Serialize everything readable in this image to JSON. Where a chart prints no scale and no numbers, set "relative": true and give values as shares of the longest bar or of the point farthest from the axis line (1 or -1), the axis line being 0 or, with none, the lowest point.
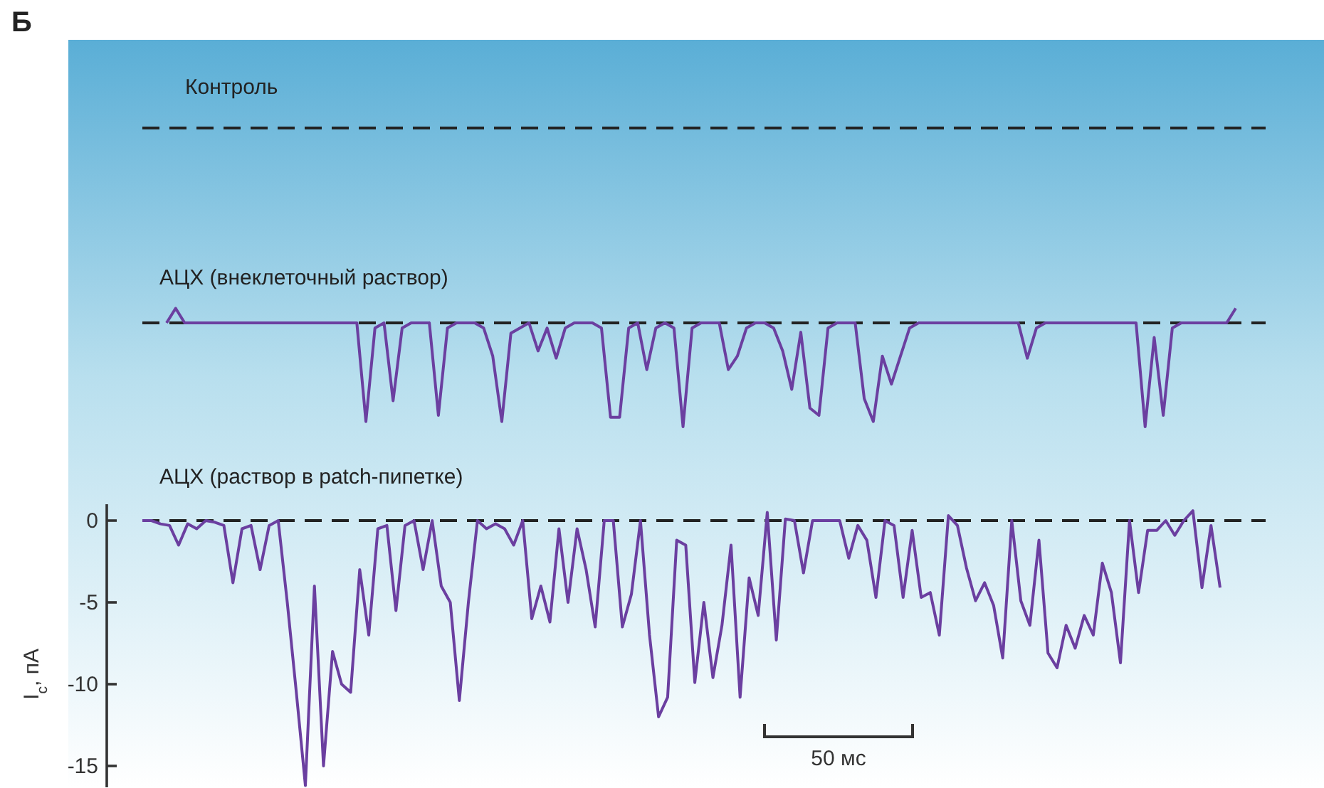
{
  "chart_data": [
    {
      "type": "other",
      "title": "Контроль",
      "annotations": [
        "Б"
      ]
    },
    {
      "type": "line",
      "title": "АЦХ (внеклеточный раствор)",
      "relative": true,
      "tick_labels": false,
      "ref_lines": [
        {
          "axis": "y",
          "value": 0,
          "line_style": "dashed",
          "color": "#222222"
        }
      ],
      "categories": [
        null,
        null,
        null,
        null,
        null,
        null,
        null,
        null,
        null,
        null,
        null,
        null,
        null,
        null,
        null,
        null,
        null,
        null,
        null,
        null,
        null,
        null,
        null,
        null,
        null,
        null,
        null,
        null,
        null,
        null,
        null,
        null,
        null,
        null,
        null,
        null,
        null,
        null,
        null,
        null,
        null,
        null,
        null,
        null,
        null,
        null,
        null,
        null,
        null,
        null,
        null,
        null,
        null,
        null,
        null,
        null,
        null,
        null,
        null,
        null,
        null,
        null,
        null,
        null,
        null,
        null,
        null,
        null,
        null,
        null,
        null,
        null,
        null,
        null,
        null,
        null,
        null,
        null,
        null,
        null,
        null,
        null,
        null,
        null,
        null,
        null,
        null,
        null,
        null,
        null,
        null,
        null,
        null,
        null,
        null,
        null,
        null,
        null,
        null,
        null,
        null,
        null,
        null,
        null,
        null,
        null,
        null,
        null,
        null,
        null,
        null,
        null,
        null,
        null,
        null,
        null,
        null,
        null,
        null
      ],
      "series": [
        {
          "color": "#6b3fa0",
          "values": [
            0,
            0.14,
            0,
            0,
            0,
            0,
            0,
            0,
            0,
            0,
            0,
            0,
            0,
            0,
            0,
            0,
            0,
            0,
            0,
            0,
            0,
            0,
            -0.95,
            -0.05,
            0,
            -0.75,
            -0.05,
            0,
            0,
            0,
            -0.89,
            -0.05,
            0,
            0,
            0,
            -0.05,
            -0.32,
            -0.95,
            -0.1,
            -0.05,
            0,
            -0.27,
            -0.05,
            -0.34,
            -0.05,
            0,
            0,
            0,
            -0.05,
            -0.91,
            -0.91,
            -0.05,
            0,
            -0.45,
            -0.05,
            0,
            -0.05,
            -1,
            -0.05,
            0,
            0,
            0,
            -0.45,
            -0.32,
            -0.05,
            0,
            0,
            -0.05,
            -0.27,
            -0.64,
            -0.09,
            -0.82,
            -0.89,
            -0.05,
            0,
            0,
            0,
            -0.73,
            -0.95,
            -0.32,
            -0.59,
            -0.32,
            -0.05,
            0,
            0,
            0,
            0,
            0,
            0,
            0,
            0,
            0,
            0,
            0,
            0,
            -0.34,
            -0.05,
            0,
            0,
            0,
            0,
            0,
            0,
            0,
            0,
            0,
            0,
            0,
            -1,
            -0.14,
            -0.89,
            -0.05,
            0,
            0,
            0,
            0,
            0,
            0,
            0.14
          ]
        }
      ]
    },
    {
      "type": "line",
      "title": "АЦХ (раствор в patch-пипетке)",
      "ylabel": "I$_{c}$, пА",
      "tick_labels": "y",
      "ylim": [
        -16.3,
        1
      ],
      "yticks": [
        0,
        -5,
        -10,
        -15
      ],
      "annotations": [
        "50 мс"
      ],
      "ref_lines": [
        {
          "axis": "y",
          "value": 0,
          "line_style": "dashed",
          "color": "#222222"
        }
      ],
      "categories": [
        null,
        null,
        null,
        null,
        null,
        null,
        null,
        null,
        null,
        null,
        null,
        null,
        null,
        null,
        null,
        null,
        null,
        null,
        null,
        null,
        null,
        null,
        null,
        null,
        null,
        null,
        null,
        null,
        null,
        null,
        null,
        null,
        null,
        null,
        null,
        null,
        null,
        null,
        null,
        null,
        null,
        null,
        null,
        null,
        null,
        null,
        null,
        null,
        null,
        null,
        null,
        null,
        null,
        null,
        null,
        null,
        null,
        null,
        null,
        null,
        null,
        null,
        null,
        null,
        null,
        null,
        null,
        null,
        null,
        null,
        null,
        null,
        null,
        null,
        null,
        null,
        null,
        null,
        null,
        null,
        null,
        null,
        null,
        null,
        null,
        null,
        null,
        null,
        null,
        null,
        null,
        null,
        null,
        null,
        null,
        null,
        null,
        null,
        null,
        null,
        null,
        null,
        null,
        null,
        null,
        null,
        null,
        null,
        null,
        null,
        null,
        null,
        null,
        null,
        null,
        null,
        null,
        null,
        null,
        null
      ],
      "series": [
        {
          "color": "#6b3fa0",
          "values": [
            0,
            0,
            -0.2,
            -0.3,
            -1.5,
            -0.2,
            -0.5,
            0,
            -0.1,
            -0.3,
            -3.8,
            -0.5,
            -0.3,
            -3,
            -0.3,
            0,
            -5,
            -10.5,
            -16.2,
            -4,
            -15,
            -8,
            -10,
            -10.5,
            -3,
            -7,
            -0.5,
            -0.3,
            -5.5,
            -0.3,
            0,
            -3,
            0,
            -4,
            -5,
            -11,
            -5,
            0,
            -0.5,
            -0.2,
            -0.5,
            -1.5,
            0,
            -6,
            -4,
            -6.2,
            -0.5,
            -5,
            -0.5,
            -3,
            -6.5,
            0,
            0,
            -6.5,
            -4.5,
            0,
            -7,
            -12,
            -10.8,
            -1.2,
            -1.5,
            -9.9,
            -5,
            -9.6,
            -6.4,
            -1.5,
            -10.8,
            -3.5,
            -5.8,
            0.5,
            -7.3,
            0.1,
            0,
            -3.2,
            0,
            0,
            0,
            0,
            -2.3,
            -0.3,
            -1.2,
            -4.7,
            0,
            -0.3,
            -4.7,
            -0.6,
            -4.7,
            -4.4,
            -7,
            0.3,
            -0.3,
            -2.9,
            -4.9,
            -3.8,
            -5.2,
            -8.4,
            0,
            -4.9,
            -6.4,
            -1.2,
            -8.1,
            -9,
            -6.4,
            -7.8,
            -5.8,
            -7,
            -2.6,
            -4.4,
            -8.7,
            0,
            -4.4,
            -0.6,
            -0.6,
            0,
            -0.9,
            0,
            0.6,
            -4.1,
            -0.3,
            -4.1
          ]
        }
      ]
    }
  ]
}
